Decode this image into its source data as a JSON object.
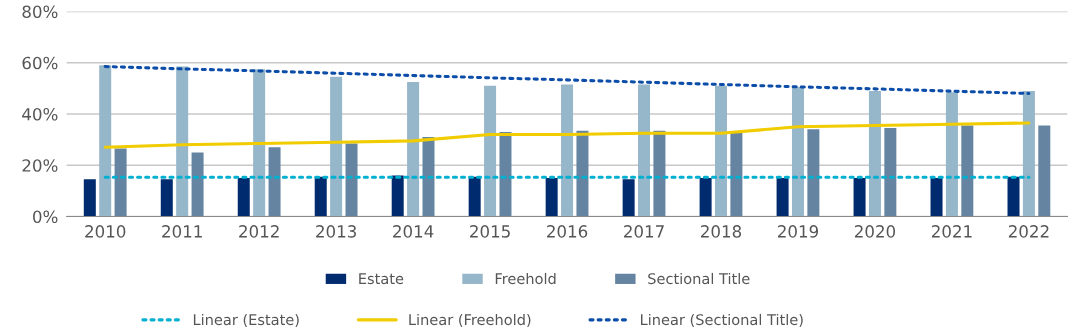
{
  "chart_data": {
    "type": "bar",
    "categories": [
      "2010",
      "2011",
      "2012",
      "2013",
      "2014",
      "2015",
      "2016",
      "2017",
      "2018",
      "2019",
      "2020",
      "2021",
      "2022"
    ],
    "series": [
      {
        "name": "Estate",
        "color": "#002b6e",
        "values": [
          14.5,
          14.5,
          15,
          15.5,
          16,
          15.5,
          15,
          14.5,
          15,
          15,
          15,
          15,
          15.5
        ]
      },
      {
        "name": "Freehold",
        "color": "#96b6ca",
        "values": [
          59,
          58.5,
          57.5,
          54.5,
          52.5,
          51,
          51.5,
          51.5,
          51,
          50.5,
          49,
          48.5,
          49
        ]
      },
      {
        "name": "Sectional Title",
        "color": "#6484a2",
        "values": [
          26.5,
          25,
          27,
          28.5,
          31,
          33,
          33.5,
          33.5,
          33,
          34,
          34.5,
          35.5,
          35.5
        ]
      },
      {
        "name": "Linear (Estate)",
        "type": "line",
        "line_style": "dotted",
        "color": "#00b0d0",
        "values": [
          15.3,
          15.3,
          15.3,
          15.3,
          15.3,
          15.3,
          15.3,
          15.3,
          15.3,
          15.3,
          15.3,
          15.3,
          15.3
        ]
      },
      {
        "name": "Linear (Freehold)",
        "type": "line",
        "line_style": "solid",
        "color": "#f0cc00",
        "values": [
          27,
          28,
          28.5,
          29,
          29.5,
          32,
          32,
          32.5,
          32.5,
          35,
          35.5,
          36,
          36.5
        ]
      },
      {
        "name": "Linear (Sectional Title)",
        "type": "line",
        "line_style": "dotted",
        "color": "#0b4da8",
        "values": [
          58.5,
          57.6,
          56.8,
          55.9,
          55,
          54.1,
          53.3,
          52.4,
          51.5,
          50.6,
          49.8,
          48.9,
          48
        ]
      }
    ],
    "ylim": [
      0,
      80
    ],
    "yticks": [
      {
        "value": 0,
        "label": "0%"
      },
      {
        "value": 20,
        "label": "20%"
      },
      {
        "value": 40,
        "label": "40%"
      },
      {
        "value": 60,
        "label": "60%"
      },
      {
        "value": 80,
        "label": "80%"
      }
    ],
    "grid": "y",
    "legend": "bottom"
  }
}
